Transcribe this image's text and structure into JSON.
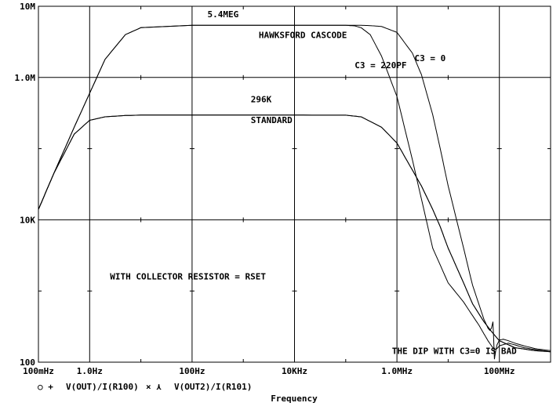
{
  "chart_data": {
    "type": "line",
    "xscale": "log",
    "yscale": "log",
    "xlim": [
      0.1,
      1000000000
    ],
    "ylim": [
      100,
      10000000
    ],
    "xlabel": "Frequency",
    "grid": true,
    "x_tick_labels": [
      {
        "value": 0.1,
        "label": "100mHz"
      },
      {
        "value": 1,
        "label": "1.0Hz"
      },
      {
        "value": 100,
        "label": "100Hz"
      },
      {
        "value": 10000,
        "label": "10KHz"
      },
      {
        "value": 1000000,
        "label": "1.0MHz"
      },
      {
        "value": 100000000,
        "label": "100MHz"
      }
    ],
    "y_tick_labels": [
      {
        "value": 100,
        "label": "100"
      },
      {
        "value": 10000,
        "label": "10K"
      },
      {
        "value": 1000000,
        "label": "1.0M"
      },
      {
        "value": 10000000,
        "label": "10M"
      }
    ],
    "legend": {
      "placement": "bottom-left",
      "entries": [
        {
          "marker": "○ +",
          "label": "V(OUT)/I(R100)"
        },
        {
          "marker": "× ⋏",
          "label": "V(OUT2)/I(R101)"
        }
      ]
    },
    "annotations": [
      {
        "text": "5.4MEG",
        "x": 200,
        "y": 7000000
      },
      {
        "text": "HAWKSFORD CASCODE",
        "x": 2000,
        "y": 3600000
      },
      {
        "text": "C3 = 220PF",
        "x": 150000,
        "y": 1350000
      },
      {
        "text": "C3 = 0",
        "x": 2200000,
        "y": 1700000
      },
      {
        "text": "296K",
        "x": 1400,
        "y": 450000
      },
      {
        "text": "STANDARD",
        "x": 1400,
        "y": 230000
      },
      {
        "text": "WITH COLLECTOR RESISTOR = RSET",
        "x": 2.5,
        "y": 1450
      },
      {
        "text": "THE DIP WITH C3=0 IS BAD",
        "x": 800000,
        "y": 130
      }
    ],
    "series": [
      {
        "x": [
          0.1,
          0.2,
          0.5,
          1,
          2,
          5,
          10,
          100,
          1000,
          10000,
          100000,
          150000,
          200000,
          300000,
          500000,
          1000000,
          2000000,
          5000000,
          10000000,
          20000000,
          30000000,
          40000000,
          50000000,
          60000000,
          70000000,
          80000000,
          90000000,
          100000000,
          150000000,
          200000000,
          300000000,
          500000000,
          1000000000
        ],
        "y": [
          14000,
          45000,
          200000,
          600000,
          1800000,
          4000000,
          5000000,
          5400000,
          5400000,
          5400000,
          5400000,
          5300000,
          5000000,
          4000000,
          2000000,
          540000,
          70000,
          4000,
          1300,
          700,
          450,
          330,
          250,
          200,
          170,
          150,
          155,
          170,
          185,
          175,
          160,
          150,
          140
        ]
      },
      {
        "x": [
          0.1,
          0.2,
          0.5,
          1,
          2,
          5,
          10,
          100,
          1000,
          10000,
          100000,
          200000,
          500000,
          1000000,
          2000000,
          3000000,
          5000000,
          7000000,
          10000000,
          20000000,
          30000000,
          50000000,
          70000000,
          100000000,
          200000000,
          500000000,
          1000000000
        ],
        "y": [
          14000,
          45000,
          160000,
          250000,
          280000,
          292000,
          296000,
          296000,
          296000,
          296000,
          295000,
          280000,
          200000,
          120000,
          50000,
          30000,
          14000,
          8000,
          4000,
          1300,
          660,
          370,
          270,
          200,
          160,
          145,
          140
        ]
      },
      {
        "x": [
          0.1,
          0.2,
          0.5,
          1,
          2,
          5,
          10,
          100,
          1000,
          10000,
          100000,
          150000,
          200000,
          300000,
          500000,
          1000000,
          2000000,
          3000000,
          5000000,
          7000000,
          10000000,
          20000000,
          30000000,
          50000000,
          60000000,
          65000000,
          70000000,
          75000000,
          80000000,
          85000000,
          90000000,
          100000000,
          120000000,
          150000000,
          200000000,
          300000000,
          500000000,
          1000000000
        ],
        "y": [
          14000,
          45000,
          200000,
          600000,
          1800000,
          4000000,
          5000000,
          5400000,
          5400000,
          5400000,
          5400000,
          5400000,
          5400000,
          5350000,
          5200000,
          4300000,
          2200000,
          1100000,
          300000,
          100000,
          30000,
          4000,
          1200,
          400,
          300,
          280,
          300,
          370,
          110,
          145,
          175,
          205,
          210,
          200,
          185,
          170,
          155,
          145
        ]
      },
      {
        "x": [
          0.1,
          0.2,
          0.5,
          1,
          2,
          5,
          10,
          100,
          1000,
          10000,
          100000,
          200000,
          500000,
          1000000,
          2000000,
          3000000,
          5000000,
          7000000,
          10000000,
          20000000,
          30000000,
          50000000,
          70000000,
          100000000,
          200000000,
          500000000,
          1000000000
        ],
        "y": [
          14000,
          45000,
          160000,
          250000,
          280000,
          292000,
          296000,
          296000,
          296000,
          296000,
          295000,
          280000,
          200000,
          120000,
          50000,
          30000,
          14000,
          8000,
          4000,
          1300,
          660,
          370,
          270,
          200,
          160,
          145,
          140
        ]
      }
    ]
  }
}
